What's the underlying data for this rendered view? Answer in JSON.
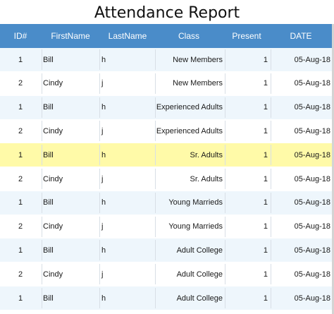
{
  "report": {
    "title": "Attendance Report"
  },
  "columns": {
    "id": "ID#",
    "first": "FirstName",
    "last": "LastName",
    "class": "Class",
    "present": "Present",
    "date": "DATE"
  },
  "rows": [
    {
      "id": "1",
      "first": "Bill",
      "last": "h",
      "class": "New Members",
      "present": "1",
      "date": "05-Aug-18"
    },
    {
      "id": "2",
      "first": "Cindy",
      "last": "j",
      "class": "New Members",
      "present": "1",
      "date": "05-Aug-18"
    },
    {
      "id": "1",
      "first": "Bill",
      "last": "h",
      "class": "Experienced Adults",
      "present": "1",
      "date": "05-Aug-18"
    },
    {
      "id": "2",
      "first": "Cindy",
      "last": "j",
      "class": "Experienced Adults",
      "present": "1",
      "date": "05-Aug-18"
    },
    {
      "id": "1",
      "first": "Bill",
      "last": "h",
      "class": "Sr. Adults",
      "present": "1",
      "date": "05-Aug-18"
    },
    {
      "id": "2",
      "first": "Cindy",
      "last": "j",
      "class": "Sr. Adults",
      "present": "1",
      "date": "05-Aug-18"
    },
    {
      "id": "1",
      "first": "Bill",
      "last": "h",
      "class": "Young Marrieds",
      "present": "1",
      "date": "05-Aug-18"
    },
    {
      "id": "2",
      "first": "Cindy",
      "last": "j",
      "class": "Young Marrieds",
      "present": "1",
      "date": "05-Aug-18"
    },
    {
      "id": "1",
      "first": "Bill",
      "last": "h",
      "class": "Adult College",
      "present": "1",
      "date": "05-Aug-18"
    },
    {
      "id": "2",
      "first": "Cindy",
      "last": "j",
      "class": "Adult College",
      "present": "1",
      "date": "05-Aug-18"
    },
    {
      "id": "1",
      "first": "Bill",
      "last": "h",
      "class": "Adult College",
      "present": "1",
      "date": "05-Aug-18"
    }
  ],
  "selected_row": 4,
  "colors": {
    "header_bg": "#4a8cc9",
    "row_alt_bg": "#eef6fc",
    "selected_bg": "#fffaa8"
  }
}
